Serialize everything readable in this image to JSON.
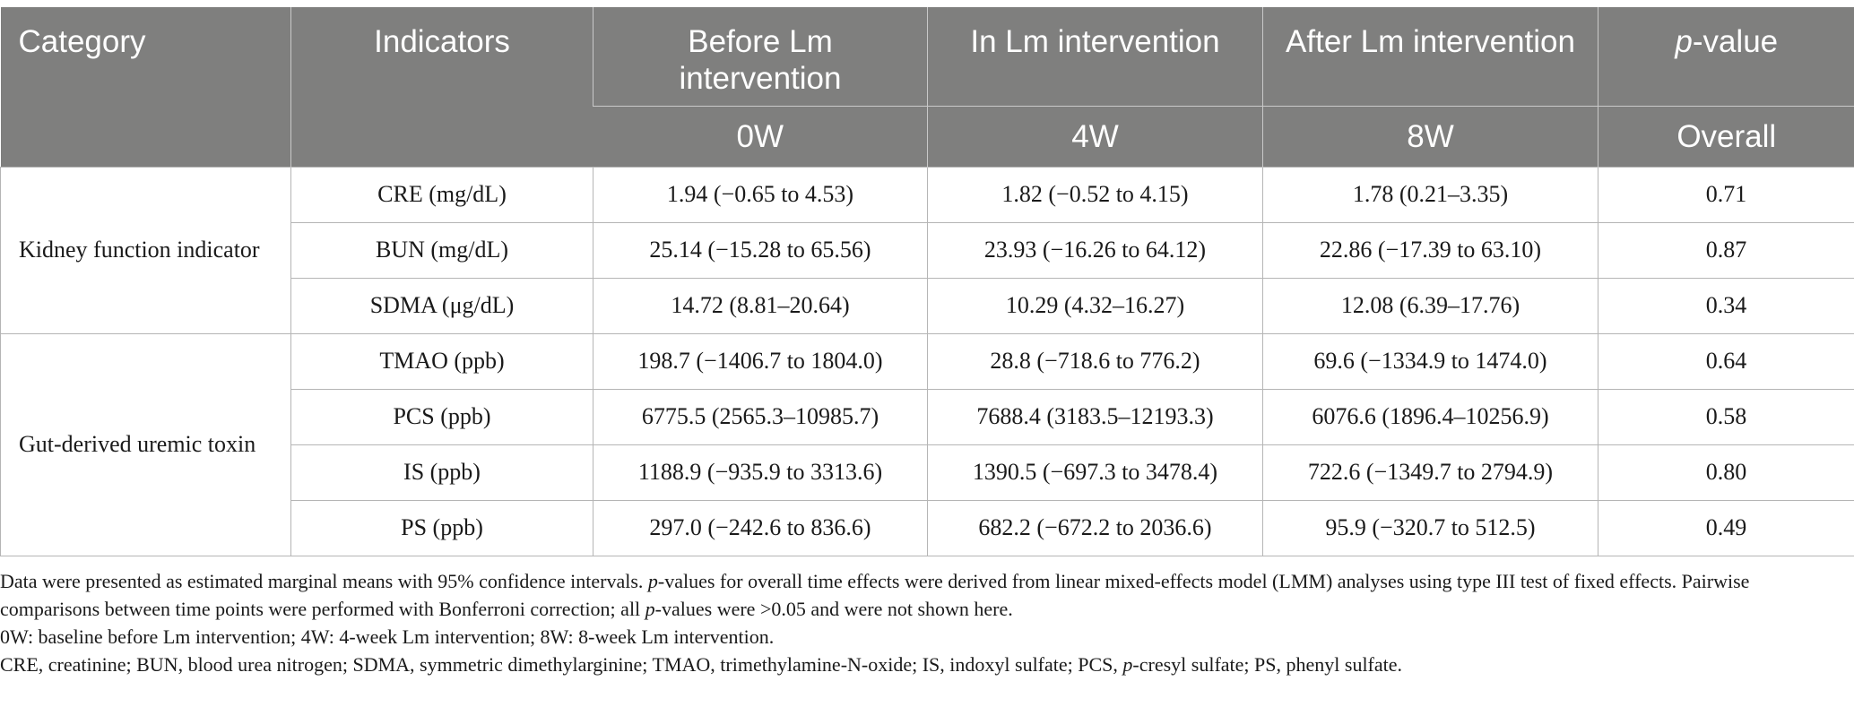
{
  "table": {
    "headers": {
      "category": "Category",
      "indicators": "Indicators",
      "before": "Before Lm intervention",
      "during": "In Lm intervention",
      "after": "After Lm intervention",
      "pvalue_prefix": "p",
      "pvalue_suffix": "-value",
      "week0": "0W",
      "week4": "4W",
      "week8": "8W",
      "overall": "Overall"
    },
    "groups": [
      {
        "category": "Kidney function indicator",
        "rows": [
          {
            "indicator": "CRE (mg/dL)",
            "before": "1.94 (−0.65 to 4.53)",
            "during": "1.82 (−0.52 to 4.15)",
            "after": "1.78 (0.21–3.35)",
            "p": "0.71"
          },
          {
            "indicator": "BUN (mg/dL)",
            "before": "25.14 (−15.28 to 65.56)",
            "during": "23.93 (−16.26 to 64.12)",
            "after": "22.86 (−17.39 to 63.10)",
            "p": "0.87"
          },
          {
            "indicator": "SDMA (μg/dL)",
            "before": "14.72 (8.81–20.64)",
            "during": "10.29 (4.32–16.27)",
            "after": "12.08 (6.39–17.76)",
            "p": "0.34"
          }
        ]
      },
      {
        "category": "Gut-derived uremic toxin",
        "rows": [
          {
            "indicator": "TMAO (ppb)",
            "before": "198.7 (−1406.7 to 1804.0)",
            "during": "28.8 (−718.6 to 776.2)",
            "after": "69.6 (−1334.9 to 1474.0)",
            "p": "0.64"
          },
          {
            "indicator": "PCS (ppb)",
            "before": "6775.5 (2565.3–10985.7)",
            "during": "7688.4 (3183.5–12193.3)",
            "after": "6076.6 (1896.4–10256.9)",
            "p": "0.58"
          },
          {
            "indicator": "IS (ppb)",
            "before": "1188.9 (−935.9 to 3313.6)",
            "during": "1390.5 (−697.3 to 3478.4)",
            "after": "722.6 (−1349.7 to 2794.9)",
            "p": "0.80"
          },
          {
            "indicator": "PS (ppb)",
            "before": "297.0 (−242.6 to 836.6)",
            "during": "682.2 (−672.2 to 2036.6)",
            "after": "95.9 (−320.7 to 512.5)",
            "p": "0.49"
          }
        ]
      }
    ]
  },
  "footnotes": {
    "line1_start": "Data were presented as estimated marginal means with 95% confidence intervals. ",
    "line1_p": "p",
    "line1_rest": "-values for overall time effects were derived from linear mixed-effects model (LMM) analyses using type III test of fixed effects. Pairwise comparisons between time points were performed with Bonferroni correction; all ",
    "line1_p2": "p",
    "line1_end": "-values were >0.05 and were not shown here.",
    "line2": "0W: baseline before Lm intervention; 4W: 4-week Lm intervention; 8W: 8-week Lm intervention.",
    "line3_start": "CRE, creatinine; BUN, blood urea nitrogen; SDMA, symmetric dimethylarginine; TMAO, trimethylamine-N-oxide; IS, indoxyl sulfate; PCS, ",
    "line3_p": "p",
    "line3_end": "-cresyl sulfate; PS, phenyl sulfate."
  }
}
